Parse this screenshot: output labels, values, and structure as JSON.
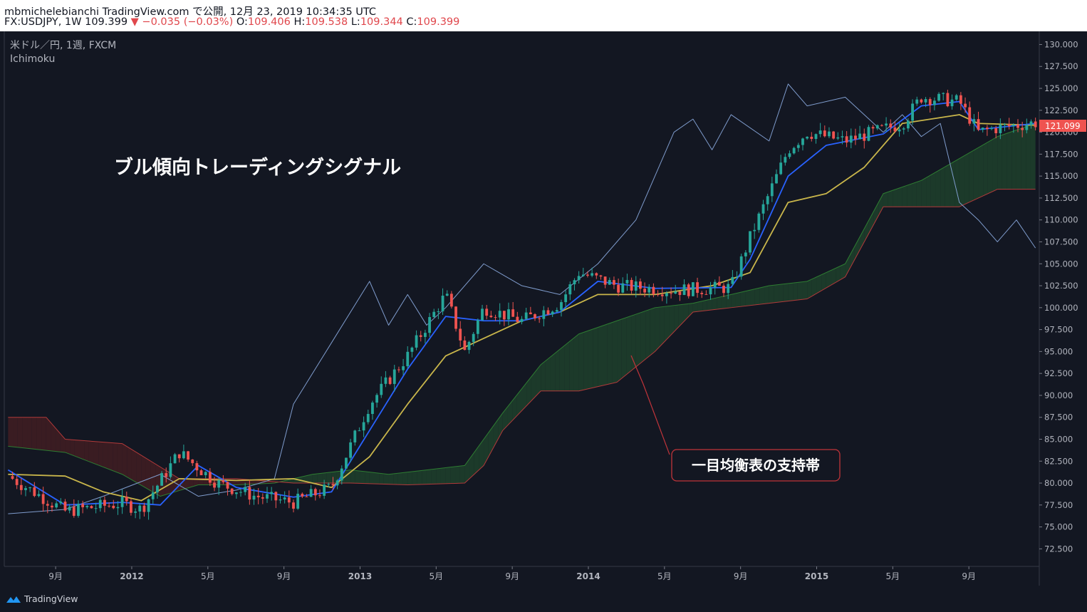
{
  "header": {
    "line1": "mbmichelebianchi TradingView.com で公開, 12月 23, 2019 10:34:35 UTC",
    "symbol": "FX:USDJPY, 1W",
    "last": "109.399",
    "change": "▼ −0.035 (−0.03%)",
    "o_label": "O:",
    "o_value": "109.406",
    "h_label": "H:",
    "h_value": "109.538",
    "l_label": "L:",
    "l_value": "109.344",
    "c_label": "C:",
    "c_value": "109.399"
  },
  "legend": {
    "instrument": "米ドル／円, 1週, FXCM",
    "indicator": "Ichimoku"
  },
  "annotations": {
    "title": "ブル傾向トレーディングシグナル",
    "callout": "一目均衡表の支持帯"
  },
  "footer": {
    "brand": "TradingView"
  },
  "colors": {
    "background": "#131722",
    "candle_up": "#26a69a",
    "candle_down": "#ef5350",
    "tenkan": "#2962ff",
    "kijun": "#c9b64b",
    "chikou": "#7f9ccd",
    "span_a": "#2e7d32",
    "span_b": "#b23a3a",
    "cloud_bull": "#1c3a2a",
    "cloud_bear": "#3a1c22",
    "price_label": "#ef5350"
  },
  "price_label": "121.099",
  "chart_data": {
    "type": "candlestick",
    "title": "",
    "y_range": [
      70.5,
      131.5
    ],
    "y_ticks": [
      "130.000",
      "127.500",
      "125.000",
      "122.500",
      "120.000",
      "117.500",
      "115.000",
      "112.500",
      "110.000",
      "107.500",
      "105.000",
      "102.500",
      "100.000",
      "97.500",
      "95.000",
      "92.500",
      "90.000",
      "87.500",
      "85.000",
      "82.500",
      "80.000",
      "77.500",
      "75.000",
      "72.500"
    ],
    "x_ticks": [
      "9月",
      "2012",
      "5月",
      "9月",
      "2013",
      "5月",
      "9月",
      "2014",
      "5月",
      "9月",
      "2015",
      "5月",
      "9月"
    ],
    "x_ticks_bold": [
      "2012",
      "2013",
      "2014",
      "2015"
    ],
    "x_tick_dates": [
      "2011-09",
      "2012-01",
      "2012-05",
      "2012-09",
      "2013-01",
      "2013-05",
      "2013-09",
      "2014-01",
      "2014-05",
      "2014-09",
      "2015-01",
      "2015-05",
      "2015-09"
    ],
    "close_path": [
      [
        "2011-06",
        80.8
      ],
      [
        "2011-09",
        76.8
      ],
      [
        "2011-12",
        77.7
      ],
      [
        "2012-01",
        77.0
      ],
      [
        "2012-03",
        83.5
      ],
      [
        "2012-05",
        80.0
      ],
      [
        "2012-07",
        78.5
      ],
      [
        "2012-09",
        77.8
      ],
      [
        "2012-11",
        79.5
      ],
      [
        "2013-01",
        89.0
      ],
      [
        "2013-03",
        94.5
      ],
      [
        "2013-05",
        101.5
      ],
      [
        "2013-06",
        95.0
      ],
      [
        "2013-07",
        100.0
      ],
      [
        "2013-09",
        98.5
      ],
      [
        "2013-11",
        100.5
      ],
      [
        "2013-12",
        104.0
      ],
      [
        "2014-02",
        102.5
      ],
      [
        "2014-05",
        102.0
      ],
      [
        "2014-08",
        102.3
      ],
      [
        "2014-09",
        108.0
      ],
      [
        "2014-11",
        118.0
      ],
      [
        "2014-12",
        120.0
      ],
      [
        "2015-02",
        119.0
      ],
      [
        "2015-05",
        121.0
      ],
      [
        "2015-06",
        124.0
      ],
      [
        "2015-08",
        123.5
      ],
      [
        "2015-09",
        120.0
      ],
      [
        "2015-10",
        120.5
      ],
      [
        "2015-12",
        121.1
      ]
    ],
    "tenkan_sen": [
      [
        "2011-06",
        81.5
      ],
      [
        "2011-09",
        77.5
      ],
      [
        "2011-12",
        77.8
      ],
      [
        "2012-02",
        77.5
      ],
      [
        "2012-04",
        82.0
      ],
      [
        "2012-06",
        79.5
      ],
      [
        "2012-09",
        78.4
      ],
      [
        "2012-11",
        79.0
      ],
      [
        "2013-01",
        86.0
      ],
      [
        "2013-03",
        93.0
      ],
      [
        "2013-05",
        99.0
      ],
      [
        "2013-07",
        98.5
      ],
      [
        "2013-09",
        98.5
      ],
      [
        "2013-11",
        99.5
      ],
      [
        "2014-01",
        103.0
      ],
      [
        "2014-04",
        102.2
      ],
      [
        "2014-08",
        102.3
      ],
      [
        "2014-09",
        105.5
      ],
      [
        "2014-11",
        115.0
      ],
      [
        "2015-01",
        118.5
      ],
      [
        "2015-04",
        119.8
      ],
      [
        "2015-06",
        123.0
      ],
      [
        "2015-08",
        123.5
      ],
      [
        "2015-09",
        120.3
      ],
      [
        "2015-12",
        121.0
      ]
    ],
    "kijun_sen": [
      [
        "2011-06",
        81.0
      ],
      [
        "2011-09",
        80.8
      ],
      [
        "2011-11",
        79.0
      ],
      [
        "2012-01",
        78.0
      ],
      [
        "2012-03",
        80.5
      ],
      [
        "2012-06",
        80.3
      ],
      [
        "2012-09",
        80.5
      ],
      [
        "2012-11",
        79.5
      ],
      [
        "2013-01",
        83.0
      ],
      [
        "2013-03",
        89.0
      ],
      [
        "2013-05",
        94.5
      ],
      [
        "2013-07",
        96.5
      ],
      [
        "2013-09",
        98.5
      ],
      [
        "2013-11",
        99.5
      ],
      [
        "2014-01",
        101.5
      ],
      [
        "2014-04",
        101.5
      ],
      [
        "2014-07",
        102.5
      ],
      [
        "2014-09",
        104.0
      ],
      [
        "2014-11",
        112.0
      ],
      [
        "2015-01",
        113.0
      ],
      [
        "2015-03",
        116.0
      ],
      [
        "2015-05",
        121.0
      ],
      [
        "2015-08",
        122.0
      ],
      [
        "2015-09",
        121.0
      ],
      [
        "2015-12",
        120.8
      ]
    ],
    "chikou_span": [
      [
        "2011-06",
        76.5
      ],
      [
        "2011-09",
        77.0
      ],
      [
        "2011-11",
        78.5
      ],
      [
        "2012-02",
        81.0
      ],
      [
        "2012-04",
        78.5
      ],
      [
        "2012-06",
        79.2
      ],
      [
        "2012-08",
        80.5
      ],
      [
        "2012-09",
        89.0
      ],
      [
        "2012-11",
        96.0
      ],
      [
        "2013-01",
        103.0
      ],
      [
        "2013-02",
        98.0
      ],
      [
        "2013-03",
        101.5
      ],
      [
        "2013-04",
        98.0
      ],
      [
        "2013-05",
        100.0
      ],
      [
        "2013-07",
        105.0
      ],
      [
        "2013-09",
        102.5
      ],
      [
        "2013-11",
        101.5
      ],
      [
        "2014-01",
        105.0
      ],
      [
        "2014-03",
        110.0
      ],
      [
        "2014-05",
        120.0
      ],
      [
        "2014-06",
        121.5
      ],
      [
        "2014-07",
        118.0
      ],
      [
        "2014-08",
        122.0
      ],
      [
        "2014-10",
        119.0
      ],
      [
        "2014-11",
        125.5
      ],
      [
        "2014-12",
        123.0
      ],
      [
        "2015-02",
        124.0
      ],
      [
        "2015-04",
        120.0
      ],
      [
        "2015-05",
        122.0
      ],
      [
        "2015-06",
        119.5
      ],
      [
        "2015-07",
        121.0
      ],
      [
        "2015-08",
        112.0
      ],
      [
        "2015-09",
        110.0
      ],
      [
        "2015-10",
        107.5
      ],
      [
        "2015-11",
        110.0
      ],
      [
        "2015-12",
        106.8
      ]
    ],
    "senkou_span_a": [
      [
        "2011-06",
        84.2
      ],
      [
        "2011-09",
        83.5
      ],
      [
        "2011-12",
        81.0
      ],
      [
        "2012-02",
        78.5
      ],
      [
        "2012-04",
        79.8
      ],
      [
        "2012-06",
        79.8
      ],
      [
        "2012-08",
        80.0
      ],
      [
        "2012-10",
        81.0
      ],
      [
        "2012-12",
        81.5
      ],
      [
        "2013-02",
        81.0
      ],
      [
        "2013-04",
        81.5
      ],
      [
        "2013-06",
        82.0
      ],
      [
        "2013-08",
        88.0
      ],
      [
        "2013-10",
        93.5
      ],
      [
        "2013-12",
        97.0
      ],
      [
        "2014-02",
        98.5
      ],
      [
        "2014-04",
        100.0
      ],
      [
        "2014-06",
        100.5
      ],
      [
        "2014-08",
        101.5
      ],
      [
        "2014-10",
        102.5
      ],
      [
        "2014-12",
        103.0
      ],
      [
        "2015-02",
        105.0
      ],
      [
        "2015-04",
        113.0
      ],
      [
        "2015-06",
        114.5
      ],
      [
        "2015-08",
        117.0
      ],
      [
        "2015-10",
        119.5
      ],
      [
        "2015-12",
        121.0
      ]
    ],
    "senkou_span_b": [
      [
        "2011-06",
        87.5
      ],
      [
        "2011-08",
        87.5
      ],
      [
        "2011-09",
        85.0
      ],
      [
        "2011-12",
        84.5
      ],
      [
        "2012-03",
        80.5
      ],
      [
        "2012-06",
        80.5
      ],
      [
        "2012-09",
        80.0
      ],
      [
        "2012-12",
        80.0
      ],
      [
        "2013-03",
        79.8
      ],
      [
        "2013-06",
        80.0
      ],
      [
        "2013-07",
        82.0
      ],
      [
        "2013-08",
        86.0
      ],
      [
        "2013-10",
        90.5
      ],
      [
        "2013-12",
        90.5
      ],
      [
        "2014-02",
        91.5
      ],
      [
        "2014-04",
        95.0
      ],
      [
        "2014-06",
        99.5
      ],
      [
        "2014-08",
        100.0
      ],
      [
        "2014-10",
        100.5
      ],
      [
        "2014-12",
        101.0
      ],
      [
        "2015-02",
        103.5
      ],
      [
        "2015-04",
        111.5
      ],
      [
        "2015-06",
        111.5
      ],
      [
        "2015-08",
        111.5
      ],
      [
        "2015-10",
        113.5
      ],
      [
        "2015-12",
        113.5
      ]
    ]
  }
}
